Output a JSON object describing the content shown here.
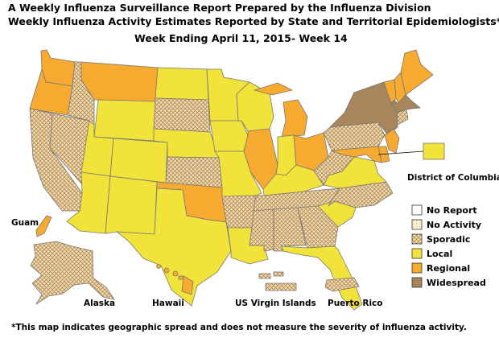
{
  "header": {
    "title_line1": "A Weekly Influenza Surveillance Report Prepared by the Influenza Division",
    "title_line2": "Weekly Influenza Activity Estimates Reported by State and Territorial Epidemiologists*",
    "week": "Week Ending April 11, 2015- Week 14"
  },
  "footnote": "*This map indicates geographic spread and does not measure the severity of influenza activity.",
  "colors": {
    "no_report": "#ffffff",
    "no_activity": "#fdf5dc",
    "sporadic": "#f4dfb6",
    "sporadic_hatch": "#b08850",
    "local": "#f2e33a",
    "regional": "#f6aa30",
    "widespread": "#a8865c",
    "border": "#777777"
  },
  "legend": [
    {
      "key": "no_report",
      "label": "No Report",
      "icon": "empty-swatch"
    },
    {
      "key": "no_activity",
      "label": "No Activity",
      "icon": "dotted-swatch"
    },
    {
      "key": "sporadic",
      "label": "Sporadic",
      "icon": "crosshatch-swatch"
    },
    {
      "key": "local",
      "label": "Local",
      "icon": "yellow-swatch"
    },
    {
      "key": "regional",
      "label": "Regional",
      "icon": "orange-swatch"
    },
    {
      "key": "widespread",
      "label": "Widespread",
      "icon": "brown-swatch"
    }
  ],
  "labels": {
    "district_of_columbia": "District of Columbia",
    "guam": "Guam",
    "alaska": "Alaska",
    "hawaii": "Hawaii",
    "usvi": "US Virgin Islands",
    "puerto_rico": "Puerto Rico"
  },
  "activity": {
    "WA": "regional",
    "OR": "regional",
    "CA": "sporadic",
    "NV": "sporadic",
    "ID": "sporadic",
    "MT": "regional",
    "WY": "local",
    "UT": "local",
    "AZ": "local",
    "CO": "local",
    "NM": "local",
    "ND": "local",
    "SD": "sporadic",
    "NE": "local",
    "KS": "sporadic",
    "OK": "regional",
    "TX": "local",
    "MN": "local",
    "IA": "local",
    "MO": "local",
    "AR": "sporadic",
    "LA": "local",
    "WI": "local",
    "IL": "regional",
    "MI": "regional",
    "IN": "local",
    "OH": "regional",
    "KY": "local",
    "TN": "sporadic",
    "MS": "sporadic",
    "AL": "sporadic",
    "GA": "sporadic",
    "FL": "local",
    "SC": "local",
    "NC": "sporadic",
    "VA": "local",
    "WV": "sporadic",
    "PA": "sporadic",
    "NY": "widespread",
    "VT": "regional",
    "NH": "regional",
    "ME": "regional",
    "MA": "widespread",
    "CT": "sporadic",
    "NJ": "regional",
    "DE": "regional",
    "MD": "regional",
    "DC": "local",
    "AK": "sporadic",
    "HI": "regional",
    "GU": "regional",
    "VI": "sporadic",
    "PR": "sporadic"
  }
}
